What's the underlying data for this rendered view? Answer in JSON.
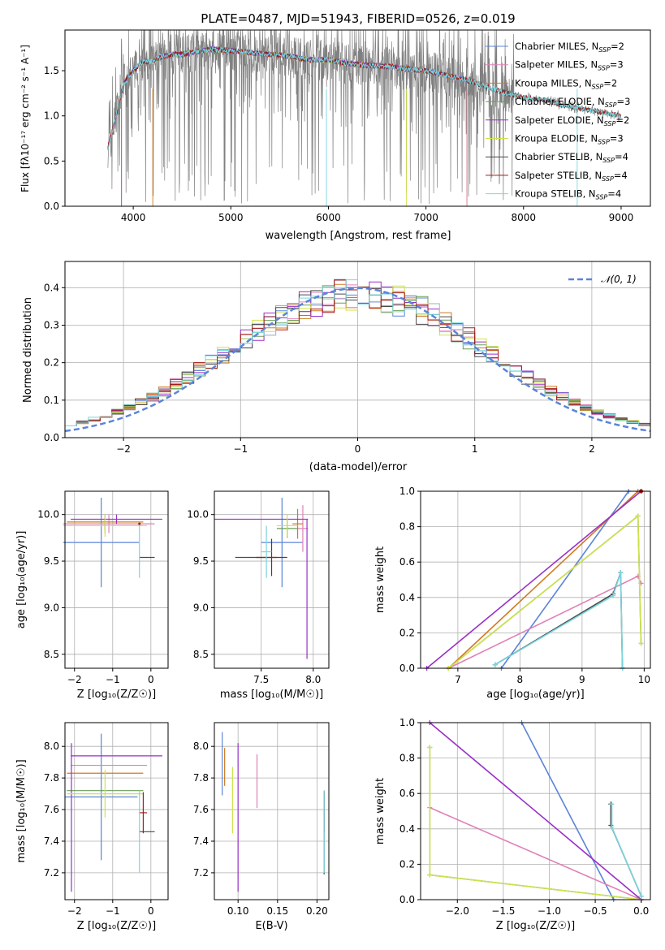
{
  "colors": {
    "chabrier_miles": "#5b84d9",
    "salpeter_miles": "#e081b8",
    "kroupa_miles": "#d07a20",
    "chabrier_elodie": "#6a9e55",
    "salpeter_elodie": "#9a2fc8",
    "kroupa_elodie": "#cfe24a",
    "chabrier_stelib": "#4a4a4a",
    "salpeter_stelib": "#a31a1a",
    "kroupa_stelib": "#79d6de",
    "data": "#808080",
    "normal": "#5b84d9",
    "grid": "#b0b0b0"
  },
  "chart_data": [
    {
      "id": "spectrum",
      "type": "line",
      "title": "PLATE=0487, MJD=51943, FIBERID=0526, z=0.019",
      "xlabel": "wavelength [Angstrom, rest frame]",
      "ylabel": "Flux [fλ10⁻¹⁷ erg cm⁻² s⁻¹ A⁻¹]",
      "xlim": [
        3300,
        9300
      ],
      "ylim": [
        0,
        1.95
      ],
      "xticks": [
        "4000",
        "5000",
        "6000",
        "7000",
        "8000",
        "9000"
      ],
      "yticks": [
        "0.0",
        "0.5",
        "1.0",
        "1.5"
      ],
      "grid": false,
      "legend_position": "upper-right",
      "legend": [
        {
          "label": "Chabrier MILES, N",
          "sub": "SSP",
          "suffix": "=2"
        },
        {
          "label": "Salpeter MILES, N",
          "sub": "SSP",
          "suffix": "=3"
        },
        {
          "label": "Kroupa MILES, N",
          "sub": "SSP",
          "suffix": "=2"
        },
        {
          "label": "Chabrier ELODIE, N",
          "sub": "SSP",
          "suffix": "=3"
        },
        {
          "label": "Salpeter ELODIE, N",
          "sub": "SSP",
          "suffix": "=2"
        },
        {
          "label": "Kroupa ELODIE, N",
          "sub": "SSP",
          "suffix": "=3"
        },
        {
          "label": "Chabrier STELIB, N",
          "sub": "SSP",
          "suffix": "=4"
        },
        {
          "label": "Salpeter STELIB, N",
          "sub": "SSP",
          "suffix": "=4"
        },
        {
          "label": "Kroupa STELIB, N",
          "sub": "SSP",
          "suffix": "=4"
        }
      ],
      "model_continuum": {
        "wavelength": [
          3740,
          3800,
          3900,
          4000,
          4100,
          4200,
          4300,
          4400,
          4500,
          4600,
          4700,
          4800,
          5000,
          5200,
          5400,
          5600,
          5800,
          6000,
          6200,
          6400,
          6600,
          6800,
          7000,
          7200,
          7400,
          7600,
          7800,
          8000,
          8200,
          8400,
          8600,
          8800,
          9000
        ],
        "flux": [
          0.65,
          0.9,
          1.35,
          1.5,
          1.6,
          1.6,
          1.66,
          1.68,
          1.68,
          1.7,
          1.72,
          1.74,
          1.72,
          1.7,
          1.68,
          1.66,
          1.62,
          1.62,
          1.58,
          1.56,
          1.55,
          1.52,
          1.5,
          1.45,
          1.4,
          1.33,
          1.26,
          1.2,
          1.18,
          1.12,
          1.08,
          1.04,
          1.0
        ]
      },
      "model_extents": [
        {
          "series": "chabrier_miles",
          "xmax": 7420
        },
        {
          "series": "salpeter_miles",
          "xmax": 7420
        },
        {
          "series": "kroupa_miles",
          "xmax": 7420
        },
        {
          "series": "chabrier_elodie",
          "xmax": 6800
        },
        {
          "series": "salpeter_elodie",
          "xmax": 6800
        },
        {
          "series": "kroupa_elodie",
          "xmax": 6800
        },
        {
          "series": "chabrier_stelib",
          "xmax": 9000
        },
        {
          "series": "salpeter_stelib",
          "xmax": 9000
        },
        {
          "series": "kroupa_stelib",
          "xmax": 9000
        }
      ]
    },
    {
      "id": "residuals",
      "type": "histogram",
      "xlabel": "(data-model)/error",
      "ylabel": "Normed distribution",
      "xlim": [
        -2.5,
        2.5
      ],
      "ylim": [
        0,
        0.47
      ],
      "xticks": [
        "−2",
        "−1",
        "0",
        "1",
        "2"
      ],
      "yticks": [
        "0.0",
        "0.1",
        "0.2",
        "0.3",
        "0.4"
      ],
      "grid": true,
      "legend_position": "upper-right",
      "legend": [
        {
          "label": "𝒩(0, 1)",
          "style": "dashed"
        }
      ],
      "bin_width": 0.1,
      "bin_start": -2.5
    },
    {
      "id": "age_vs_Z",
      "type": "errorbar",
      "xlabel": "Z [log₁₀(Z/Z☉)]",
      "ylabel": "age  [log₁₀(age/yr)]",
      "xlim": [
        -2.25,
        0.45
      ],
      "ylim": [
        8.35,
        10.25
      ],
      "xticks": [
        "−2",
        "−1",
        "0"
      ],
      "yticks": [
        "8.5",
        "9.0",
        "9.5",
        "10.0"
      ],
      "grid": true,
      "points": [
        {
          "series": "chabrier_miles",
          "x": -1.3,
          "y": 9.7,
          "xerr": 1.0,
          "yerr": 0.48
        },
        {
          "series": "salpeter_miles",
          "x": -1.1,
          "y": 9.9,
          "xerr": 1.2,
          "yerr": 0.1
        },
        {
          "series": "kroupa_miles",
          "x": -1.2,
          "y": 9.92,
          "xerr": 1.0,
          "yerr": 0.08
        },
        {
          "series": "chabrier_elodie",
          "x": -1.2,
          "y": 9.88,
          "xerr": 1.0,
          "yerr": 0.08
        },
        {
          "series": "salpeter_elodie",
          "x": -0.9,
          "y": 9.95,
          "xerr": 1.2,
          "yerr": 0.05
        },
        {
          "series": "kroupa_elodie",
          "x": -1.2,
          "y": 9.88,
          "xerr": 1.1,
          "yerr": 0.12
        },
        {
          "series": "chabrier_stelib",
          "x": -0.1,
          "y": 9.54,
          "xerr": 0.2,
          "yerr": 0.0
        },
        {
          "series": "salpeter_stelib",
          "x": -0.3,
          "y": 9.9,
          "xerr": 0.0,
          "yerr": 0.0
        },
        {
          "series": "kroupa_stelib",
          "x": -0.3,
          "y": 9.6,
          "xerr": 0.0,
          "yerr": 0.28
        }
      ]
    },
    {
      "id": "age_vs_mass",
      "type": "errorbar",
      "xlabel": "mass [log₁₀(M/M☉)]",
      "xlim": [
        7.05,
        8.15
      ],
      "ylim": [
        8.35,
        10.25
      ],
      "xticks": [
        "7.5",
        "8.0"
      ],
      "yticks": [
        "8.5",
        "9.0",
        "9.5",
        "10.0"
      ],
      "grid": true,
      "points": [
        {
          "series": "chabrier_miles",
          "x": 7.7,
          "y": 9.7,
          "xerr": 0.2,
          "yerr": 0.48
        },
        {
          "series": "salpeter_miles",
          "x": 7.9,
          "y": 9.85,
          "xerr": 0.05,
          "yerr": 0.25
        },
        {
          "series": "kroupa_miles",
          "x": 7.85,
          "y": 9.9,
          "xerr": 0.05,
          "yerr": 0.16
        },
        {
          "series": "chabrier_elodie",
          "x": 7.75,
          "y": 9.85,
          "xerr": 0.1,
          "yerr": 0.1
        },
        {
          "series": "salpeter_elodie",
          "x": 7.5,
          "y": 9.95,
          "xerr": 0.45,
          "yerr": 0.0
        },
        {
          "series": "salpeter_elodie_v",
          "x": 7.94,
          "y": 9.2,
          "xerr": 0.0,
          "yerr": 0.75
        },
        {
          "series": "kroupa_elodie",
          "x": 7.75,
          "y": 9.88,
          "xerr": 0.1,
          "yerr": 0.12
        },
        {
          "series": "chabrier_stelib",
          "x": 7.45,
          "y": 9.54,
          "xerr": 0.2,
          "yerr": 0.0
        },
        {
          "series": "salpeter_stelib",
          "x": 7.6,
          "y": 9.54,
          "xerr": 0.15,
          "yerr": 0.2
        },
        {
          "series": "kroupa_stelib",
          "x": 7.55,
          "y": 9.6,
          "xerr": 0.05,
          "yerr": 0.28
        }
      ]
    },
    {
      "id": "mass_weight_vs_age",
      "type": "line",
      "xlabel": "age  [log₁₀(age/yr)]",
      "ylabel": "mass weight",
      "xlim": [
        6.4,
        10.1
      ],
      "ylim": [
        0,
        1.0
      ],
      "xticks": [
        "7",
        "8",
        "9",
        "10"
      ],
      "yticks": [
        "0.0",
        "0.2",
        "0.4",
        "0.6",
        "0.8",
        "1.0"
      ],
      "grid": true,
      "series": [
        {
          "name": "chabrier_miles",
          "x": [
            7.7,
            9.75
          ],
          "y": [
            0.0,
            1.0
          ]
        },
        {
          "name": "salpeter_miles",
          "x": [
            6.85,
            9.9,
            9.95
          ],
          "y": [
            0.0,
            0.52,
            0.48
          ]
        },
        {
          "name": "kroupa_miles",
          "x": [
            6.85,
            9.9
          ],
          "y": [
            0.0,
            1.0
          ]
        },
        {
          "name": "chabrier_elodie",
          "x": [
            6.85,
            9.9,
            9.95
          ],
          "y": [
            0.0,
            0.86,
            0.14
          ]
        },
        {
          "name": "salpeter_elodie",
          "x": [
            6.5,
            9.95
          ],
          "y": [
            0.0,
            1.0
          ]
        },
        {
          "name": "kroupa_elodie",
          "x": [
            6.85,
            9.9,
            9.95
          ],
          "y": [
            0.0,
            0.86,
            0.14
          ]
        },
        {
          "name": "chabrier_stelib",
          "x": [
            7.6,
            9.5,
            9.62,
            9.65
          ],
          "y": [
            0.02,
            0.42,
            0.54,
            0.0
          ]
        },
        {
          "name": "salpeter_stelib",
          "x": [
            9.95
          ],
          "y": [
            1.0
          ]
        },
        {
          "name": "kroupa_stelib",
          "x": [
            7.6,
            9.5,
            9.62,
            9.65
          ],
          "y": [
            0.02,
            0.41,
            0.54,
            0.0
          ]
        }
      ]
    },
    {
      "id": "mass_vs_Z",
      "type": "errorbar",
      "xlabel": "Z [log₁₀(Z/Z☉)]",
      "ylabel": "mass [log₁₀(M/M☉)]",
      "xlim": [
        -2.25,
        0.45
      ],
      "ylim": [
        7.03,
        8.15
      ],
      "xticks": [
        "−2",
        "−1",
        "0"
      ],
      "yticks": [
        "7.2",
        "7.4",
        "7.6",
        "7.8",
        "8.0"
      ],
      "grid": true,
      "points": [
        {
          "series": "chabrier_miles",
          "x": -1.3,
          "y": 7.68,
          "xerr": 0.95,
          "yerr": 0.4
        },
        {
          "series": "salpeter_miles",
          "x": -1.1,
          "y": 7.88,
          "xerr": 1.0,
          "yerr": 0.0
        },
        {
          "series": "kroupa_miles",
          "x": -1.2,
          "y": 7.83,
          "xerr": 1.0,
          "yerr": 0.0
        },
        {
          "series": "chabrier_elodie",
          "x": -1.2,
          "y": 7.72,
          "xerr": 1.0,
          "yerr": 0.0
        },
        {
          "series": "salpeter_elodie",
          "x": -0.9,
          "y": 7.94,
          "xerr": 1.2,
          "yerr": 0.0
        },
        {
          "series": "salpeter_elodie_v",
          "x": -2.08,
          "y": 7.55,
          "xerr": 0.0,
          "yerr": 0.47
        },
        {
          "series": "kroupa_elodie",
          "x": -1.2,
          "y": 7.7,
          "xerr": 1.0,
          "yerr": 0.15
        },
        {
          "series": "chabrier_stelib",
          "x": -0.1,
          "y": 7.46,
          "xerr": 0.2,
          "yerr": 0.0
        },
        {
          "series": "salpeter_stelib",
          "x": -0.2,
          "y": 7.58,
          "xerr": 0.1,
          "yerr": 0.13
        },
        {
          "series": "kroupa_stelib",
          "x": -0.3,
          "y": 7.46,
          "xerr": 0.0,
          "yerr": 0.26
        }
      ]
    },
    {
      "id": "mass_vs_ebv",
      "type": "errorbar",
      "xlabel": "E(B-V)",
      "xlim": [
        0.07,
        0.215
      ],
      "ylim": [
        7.03,
        8.15
      ],
      "xticks": [
        "0.10",
        "0.15",
        "0.20"
      ],
      "yticks": [
        "7.2",
        "7.4",
        "7.6",
        "7.8",
        "8.0"
      ],
      "grid": true,
      "points": [
        {
          "series": "chabrier_miles",
          "x": 0.08,
          "y": 7.89,
          "yerr": 0.2
        },
        {
          "series": "kroupa_miles",
          "x": 0.083,
          "y": 7.87,
          "yerr": 0.12
        },
        {
          "series": "kroupa_elodie",
          "x": 0.093,
          "y": 7.66,
          "yerr": 0.21
        },
        {
          "series": "salpeter_elodie",
          "x": 0.1,
          "y": 7.55,
          "yerr": 0.47
        },
        {
          "series": "salpeter_miles",
          "x": 0.124,
          "y": 7.78,
          "yerr": 0.17
        },
        {
          "series": "salpeter_stelib",
          "x": 0.209,
          "y": 7.59,
          "yerr": 0.13
        },
        {
          "series": "chabrier_stelib",
          "x": 0.209,
          "y": 7.45,
          "yerr": 0.26
        },
        {
          "series": "kroupa_stelib",
          "x": 0.209,
          "y": 7.46,
          "yerr": 0.26
        }
      ]
    },
    {
      "id": "mass_weight_vs_Z",
      "type": "line",
      "xlabel": "Z [log₁₀(Z/Z☉)]",
      "ylabel": "mass weight",
      "xlim": [
        -2.4,
        0.1
      ],
      "ylim": [
        0,
        1.0
      ],
      "xticks": [
        "−2.0",
        "−1.5",
        "−1.0",
        "−0.5",
        "0.0"
      ],
      "yticks": [
        "0.0",
        "0.2",
        "0.4",
        "0.6",
        "0.8",
        "1.0"
      ],
      "grid": true,
      "series": [
        {
          "name": "chabrier_miles",
          "x": [
            -1.3,
            -0.3
          ],
          "y": [
            1.0,
            0.0
          ]
        },
        {
          "name": "salpeter_miles",
          "x": [
            -2.3,
            0.0
          ],
          "y": [
            0.52,
            0.0
          ]
        },
        {
          "name": "salpeter_elodie",
          "x": [
            -2.3,
            0.0
          ],
          "y": [
            1.0,
            0.0
          ]
        },
        {
          "name": "chabrier_elodie",
          "x": [
            -2.3,
            -2.3,
            0.0
          ],
          "y": [
            0.86,
            0.14,
            0.0
          ]
        },
        {
          "name": "kroupa_elodie",
          "x": [
            -2.3,
            -2.3,
            0.0
          ],
          "y": [
            0.86,
            0.14,
            0.0
          ]
        },
        {
          "name": "chabrier_stelib",
          "x": [
            -0.33,
            -0.33,
            0.0
          ],
          "y": [
            0.54,
            0.42,
            0.02
          ]
        },
        {
          "name": "kroupa_stelib",
          "x": [
            -0.32,
            -0.32,
            0.0
          ],
          "y": [
            0.54,
            0.41,
            0.02
          ]
        }
      ]
    }
  ]
}
